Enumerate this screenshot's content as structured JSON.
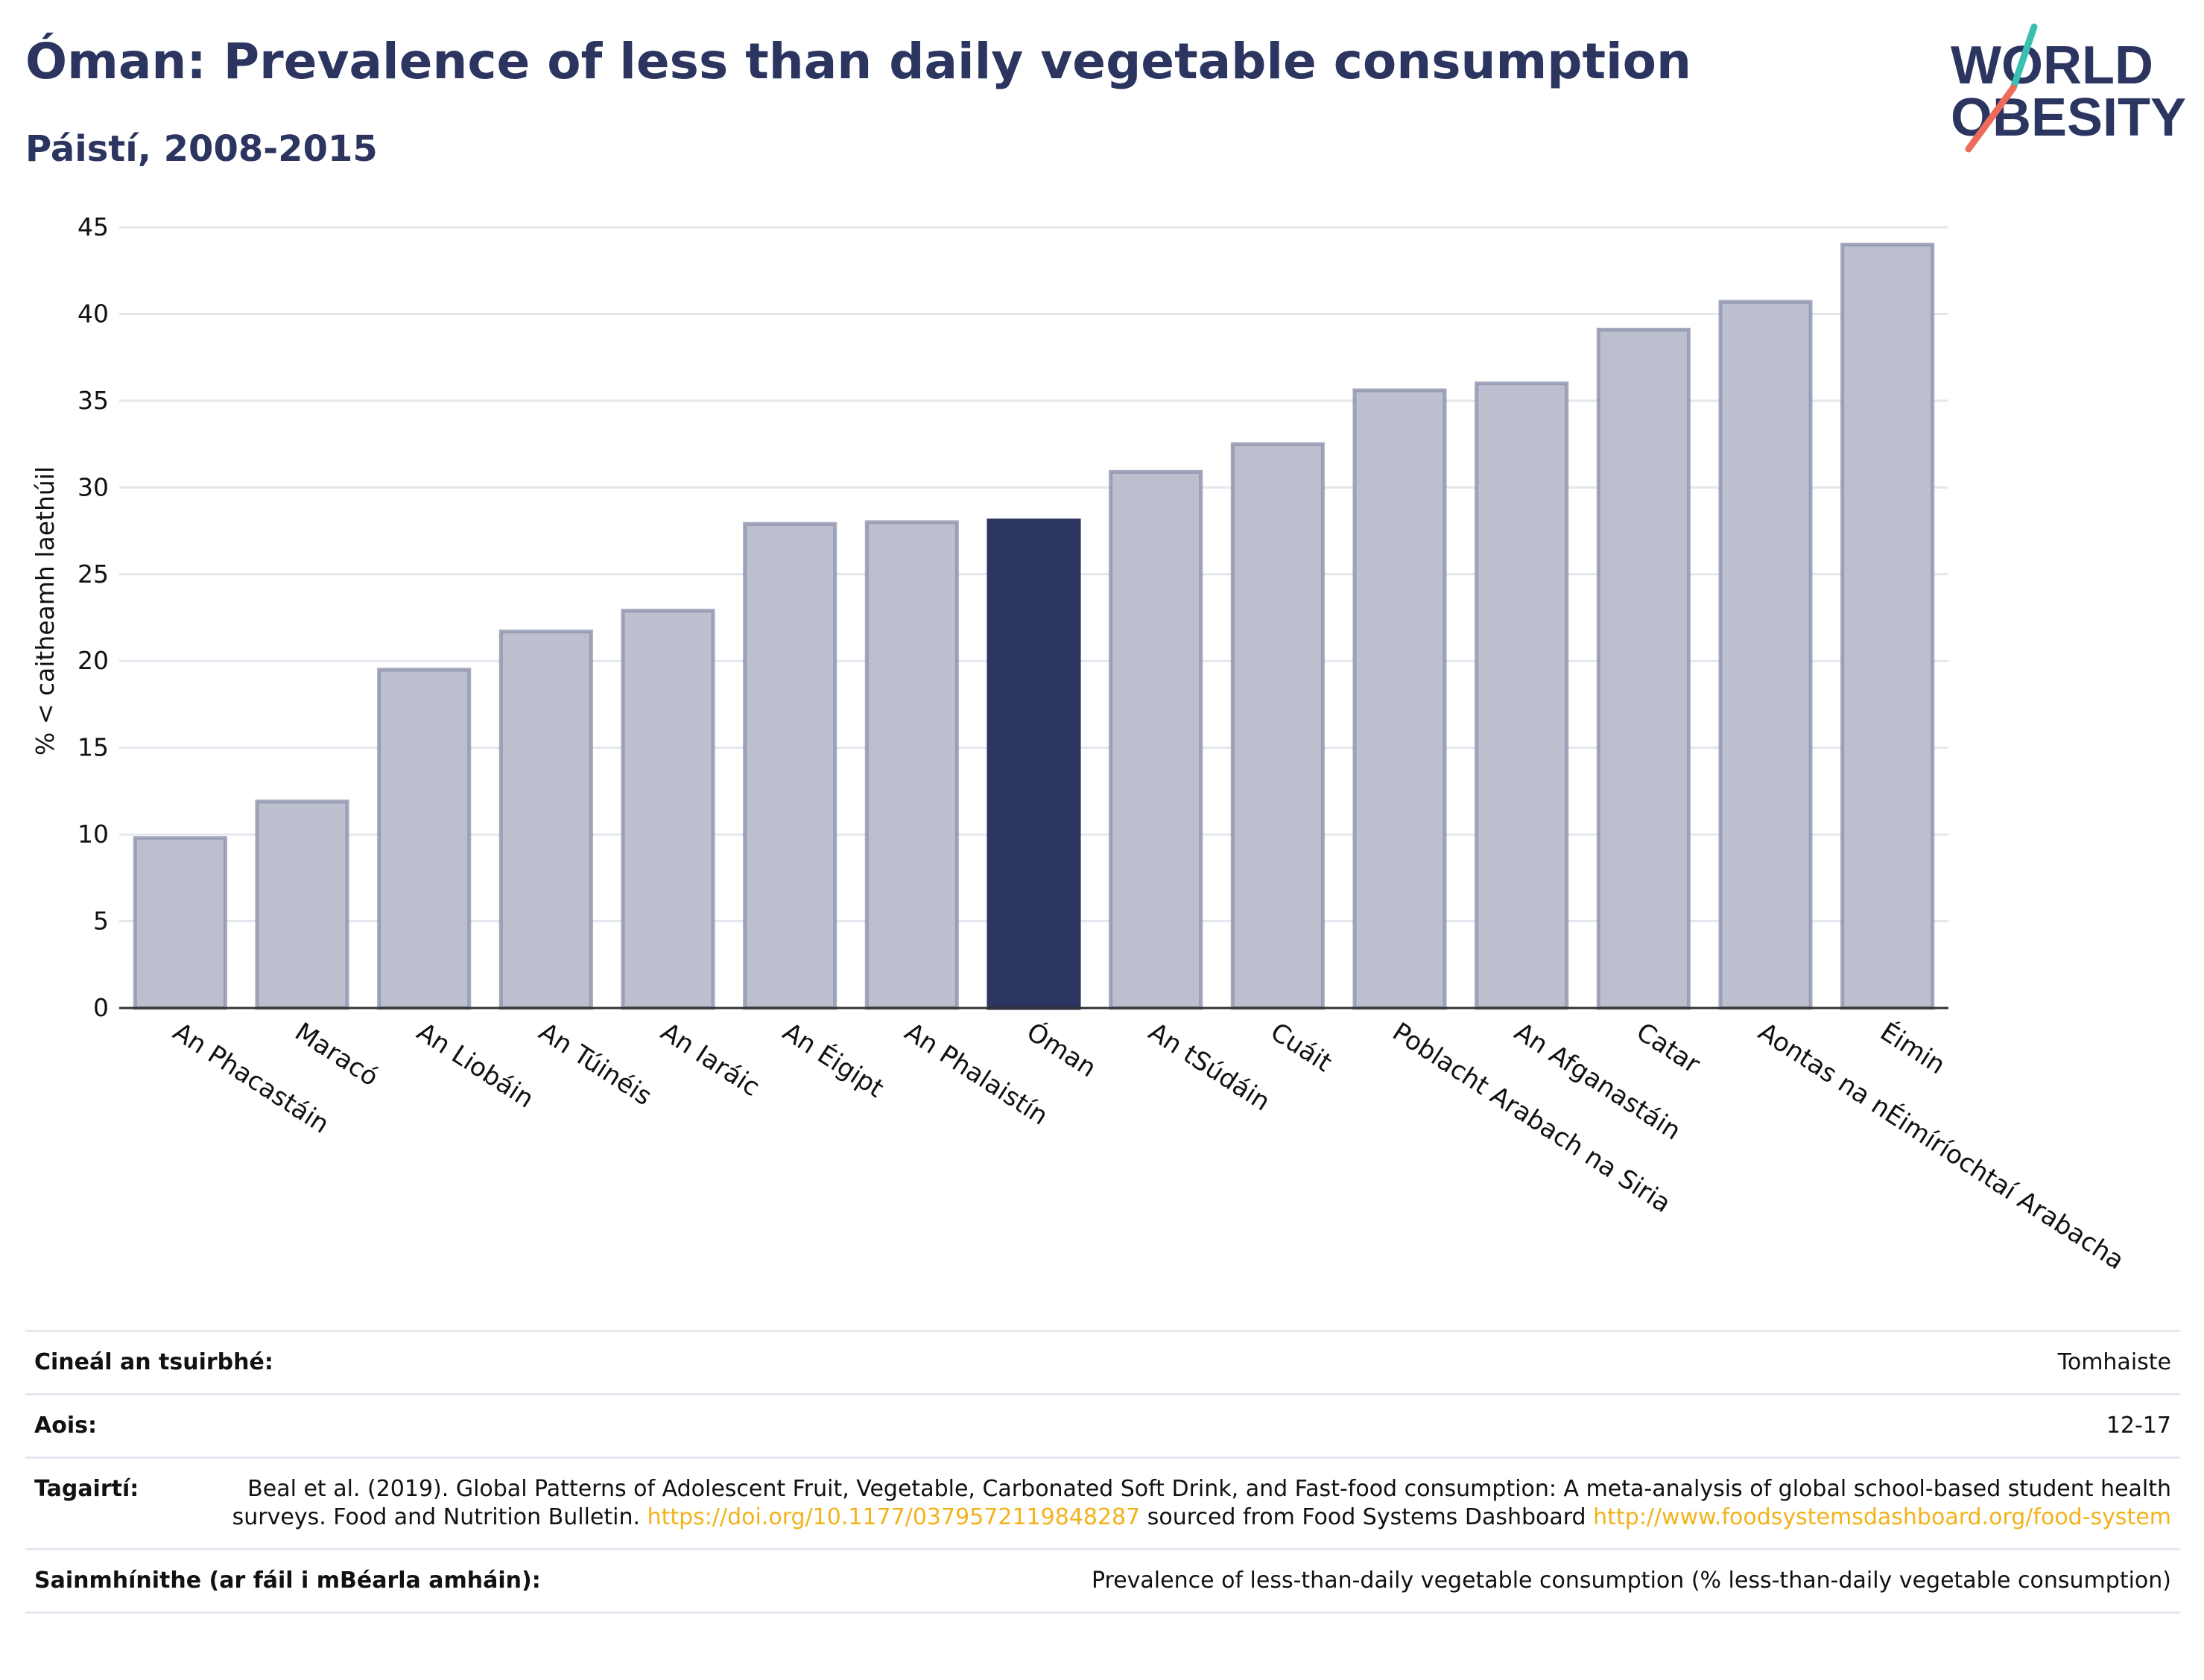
{
  "header": {
    "title": "Óman: Prevalence of less than daily vegetable consumption",
    "subtitle": "Páistí, 2008-2015"
  },
  "logo": {
    "line1": "WORLD",
    "line2": "OBESITY",
    "text_color": "#2b3560",
    "slash_colors": [
      "#3bbfb0",
      "#ee6a5a"
    ]
  },
  "chart_data": {
    "type": "bar",
    "ylabel": "% < caitheamh laethúil",
    "ylim": [
      0,
      45
    ],
    "yticks": [
      0,
      5,
      10,
      15,
      20,
      25,
      30,
      35,
      40,
      45
    ],
    "grid": true,
    "categories": [
      "An Phacastáin",
      "Maracó",
      "An Liobáin",
      "An Túinéis",
      "An Iaráic",
      "An Éigipt",
      "An Phalaistín",
      "Óman",
      "An tSúdáin",
      "Cuáit",
      "Poblacht Arabach na Siria",
      "An Afganastáin",
      "Catar",
      "Aontas na nÉimíríochtaí Arabacha",
      "Éimin"
    ],
    "values": [
      9.8,
      11.9,
      19.5,
      21.7,
      22.9,
      27.9,
      28.0,
      28.1,
      30.9,
      32.5,
      35.6,
      36.0,
      39.1,
      40.7,
      44.0
    ],
    "highlight": "Óman",
    "colors": {
      "bar": "#bcbfcd",
      "bar_edge": "#8e94ae",
      "highlight": "#2b3560"
    }
  },
  "meta": {
    "survey_type_label": "Cineál an tsuirbhé:",
    "survey_type_value": "Tomhaiste",
    "age_label": "Aois:",
    "age_value": "12-17",
    "references_label": "Tagairtí:",
    "references_text_1": "Beal et al. (2019). Global Patterns of Adolescent Fruit, Vegetable, Carbonated Soft Drink, and Fast-food consumption: A meta-analysis of global school-based student health surveys. Food and Nutrition Bulletin.",
    "references_link_1": "https://doi.org/10.1177/0379572119848287",
    "references_text_2": "sourced from Food Systems Dashboard",
    "references_link_2": "http://www.foodsystemsdashboard.org/food-system",
    "definitions_label": "Sainmhínithe (ar fáil i mBéarla amháin):",
    "definitions_value": "Prevalence of less-than-daily vegetable consumption (% less-than-daily vegetable consumption)"
  }
}
